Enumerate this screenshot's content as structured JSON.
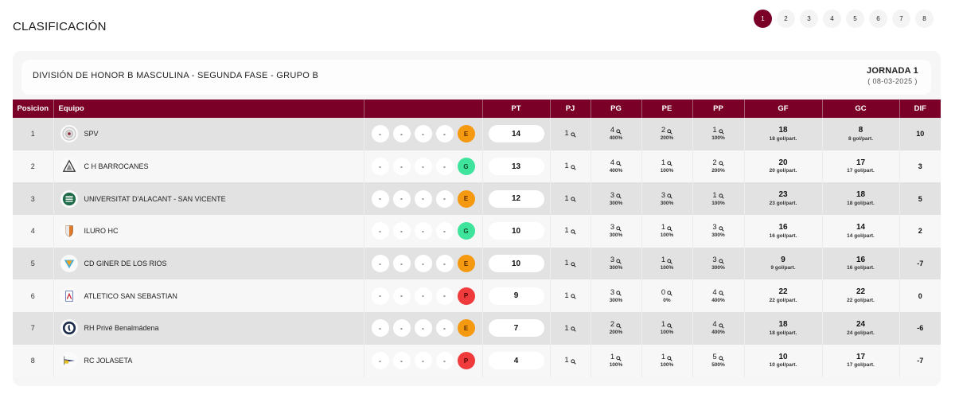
{
  "page": {
    "title": "CLASIFICACIÓN"
  },
  "pagination": {
    "pages": [
      "1",
      "2",
      "3",
      "4",
      "5",
      "6",
      "7",
      "8"
    ],
    "active": "1"
  },
  "competition": {
    "league": "DIVISIÓN DE HONOR B MASCULINA - SEGUNDA FASE - GRUPO B",
    "jornada": "JORNADA 1",
    "date": "( 08-03-2025 )"
  },
  "colors": {
    "accent": "#7a0027",
    "win": "#3ee39c",
    "draw": "#f59a10",
    "loss": "#ef3b3b"
  },
  "table": {
    "headers": {
      "pos": "Posicion",
      "team": "Equipo",
      "form": "",
      "pt": "PT",
      "pj": "PJ",
      "pg": "PG",
      "pe": "PE",
      "pp": "PP",
      "gf": "GF",
      "gc": "GC",
      "dif": "DIF"
    },
    "rows": [
      {
        "pos": "1",
        "team": "SPV",
        "logo": "spv-crest",
        "form": [
          "-",
          "-",
          "-",
          "-",
          "E"
        ],
        "pt": "14",
        "pj": "1",
        "pg": "4",
        "pg_pct": "400%",
        "pe": "2",
        "pe_pct": "200%",
        "pp": "1",
        "pp_pct": "100%",
        "gf": "18",
        "gf_avg": "18 gol/part.",
        "gc": "8",
        "gc_avg": "8 gol/part.",
        "dif": "10"
      },
      {
        "pos": "2",
        "team": "C H BARROCANES",
        "logo": "barrocanes-crest",
        "form": [
          "-",
          "-",
          "-",
          "-",
          "G"
        ],
        "pt": "13",
        "pj": "1",
        "pg": "4",
        "pg_pct": "400%",
        "pe": "1",
        "pe_pct": "100%",
        "pp": "2",
        "pp_pct": "200%",
        "gf": "20",
        "gf_avg": "20 gol/part.",
        "gc": "17",
        "gc_avg": "17 gol/part.",
        "dif": "3"
      },
      {
        "pos": "3",
        "team": "UNIVERSITAT D'ALACANT - SAN VICENTE",
        "logo": "alacant-crest",
        "form": [
          "-",
          "-",
          "-",
          "-",
          "E"
        ],
        "pt": "12",
        "pj": "1",
        "pg": "3",
        "pg_pct": "300%",
        "pe": "3",
        "pe_pct": "300%",
        "pp": "1",
        "pp_pct": "100%",
        "gf": "23",
        "gf_avg": "23 gol/part.",
        "gc": "18",
        "gc_avg": "18 gol/part.",
        "dif": "5"
      },
      {
        "pos": "4",
        "team": "ILURO HC",
        "logo": "iluro-crest",
        "form": [
          "-",
          "-",
          "-",
          "-",
          "G"
        ],
        "pt": "10",
        "pj": "1",
        "pg": "3",
        "pg_pct": "300%",
        "pe": "1",
        "pe_pct": "100%",
        "pp": "3",
        "pp_pct": "300%",
        "gf": "16",
        "gf_avg": "16 gol/part.",
        "gc": "14",
        "gc_avg": "14 gol/part.",
        "dif": "2"
      },
      {
        "pos": "5",
        "team": "CD GINER DE LOS RIOS",
        "logo": "giner-crest",
        "form": [
          "-",
          "-",
          "-",
          "-",
          "E"
        ],
        "pt": "10",
        "pj": "1",
        "pg": "3",
        "pg_pct": "300%",
        "pe": "1",
        "pe_pct": "100%",
        "pp": "3",
        "pp_pct": "300%",
        "gf": "9",
        "gf_avg": "9 gol/part.",
        "gc": "16",
        "gc_avg": "16 gol/part.",
        "dif": "-7"
      },
      {
        "pos": "6",
        "team": "ATLETICO SAN SEBASTIAN",
        "logo": "sansebastian-crest",
        "form": [
          "-",
          "-",
          "-",
          "-",
          "P"
        ],
        "pt": "9",
        "pj": "1",
        "pg": "3",
        "pg_pct": "300%",
        "pe": "0",
        "pe_pct": "0%",
        "pp": "4",
        "pp_pct": "400%",
        "gf": "22",
        "gf_avg": "22 gol/part.",
        "gc": "22",
        "gc_avg": "22 gol/part.",
        "dif": "0"
      },
      {
        "pos": "7",
        "team": "RH Privé Benalmádena",
        "logo": "benalmadena-crest",
        "form": [
          "-",
          "-",
          "-",
          "-",
          "E"
        ],
        "pt": "7",
        "pj": "1",
        "pg": "2",
        "pg_pct": "200%",
        "pe": "1",
        "pe_pct": "100%",
        "pp": "4",
        "pp_pct": "400%",
        "gf": "18",
        "gf_avg": "18 gol/part.",
        "gc": "24",
        "gc_avg": "24 gol/part.",
        "dif": "-6"
      },
      {
        "pos": "8",
        "team": "RC JOLASETA",
        "logo": "jolaseta-crest",
        "form": [
          "-",
          "-",
          "-",
          "-",
          "P"
        ],
        "pt": "4",
        "pj": "1",
        "pg": "1",
        "pg_pct": "100%",
        "pe": "1",
        "pe_pct": "100%",
        "pp": "5",
        "pp_pct": "500%",
        "gf": "10",
        "gf_avg": "10 gol/part.",
        "gc": "17",
        "gc_avg": "17 gol/part.",
        "dif": "-7"
      }
    ]
  }
}
